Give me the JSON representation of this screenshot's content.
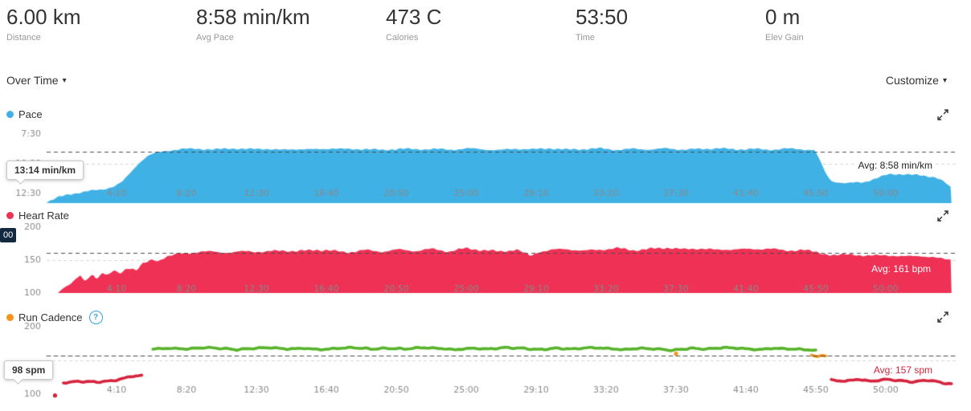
{
  "stats": {
    "items": [
      {
        "value": "6.00 km",
        "label": "Distance"
      },
      {
        "value": "8:58 min/km",
        "label": "Avg Pace"
      },
      {
        "value": "473 C",
        "label": "Calories"
      },
      {
        "value": "53:50",
        "label": "Time"
      },
      {
        "value": "0 m",
        "label": "Elev Gain"
      }
    ]
  },
  "controls": {
    "left_dropdown": "Over Time",
    "right_dropdown": "Customize",
    "caret": "▾"
  },
  "chart_data": [
    {
      "id": "pace",
      "type": "area",
      "title": "Pace",
      "color": "#3fb1e5",
      "legend_color": "#3fb1e5",
      "tooltip": "13:14 min/km",
      "avg_label": "Avg: 8:58 min/km",
      "avg": 538,
      "unit": "min/km (seconds per km)",
      "x_max": 3253,
      "x_ticks": [
        250,
        500,
        750,
        1000,
        1250,
        1500,
        1750,
        2000,
        2250,
        2500,
        2750,
        3000
      ],
      "x_tick_labels": [
        "4:10",
        "8:20",
        "12:30",
        "16:40",
        "20:50",
        "25:00",
        "29:10",
        "33:20",
        "37:30",
        "41:40",
        "45:50",
        "50:00"
      ],
      "y_ticks": [
        450,
        600,
        750
      ],
      "y_tick_labels": [
        "7:30",
        "10:00",
        "12:30"
      ],
      "gridlines": [
        600
      ],
      "noise": 6,
      "points": [
        [
          0,
          795
        ],
        [
          40,
          772
        ],
        [
          80,
          755
        ],
        [
          120,
          746
        ],
        [
          160,
          738
        ],
        [
          200,
          730
        ],
        [
          240,
          716
        ],
        [
          270,
          694
        ],
        [
          300,
          645
        ],
        [
          330,
          596
        ],
        [
          360,
          562
        ],
        [
          390,
          546
        ],
        [
          420,
          536
        ],
        [
          450,
          531
        ],
        [
          480,
          527
        ],
        [
          540,
          524
        ],
        [
          600,
          529
        ],
        [
          660,
          522
        ],
        [
          720,
          527
        ],
        [
          780,
          524
        ],
        [
          840,
          531
        ],
        [
          900,
          525
        ],
        [
          960,
          529
        ],
        [
          1020,
          522
        ],
        [
          1080,
          528
        ],
        [
          1140,
          525
        ],
        [
          1200,
          532
        ],
        [
          1260,
          524
        ],
        [
          1320,
          528
        ],
        [
          1380,
          525
        ],
        [
          1440,
          530
        ],
        [
          1500,
          523
        ],
        [
          1560,
          527
        ],
        [
          1620,
          532
        ],
        [
          1680,
          524
        ],
        [
          1740,
          528
        ],
        [
          1800,
          522
        ],
        [
          1860,
          529
        ],
        [
          1920,
          526
        ],
        [
          1980,
          523
        ],
        [
          2040,
          530
        ],
        [
          2100,
          525
        ],
        [
          2160,
          528
        ],
        [
          2220,
          523
        ],
        [
          2280,
          529
        ],
        [
          2340,
          526
        ],
        [
          2400,
          522
        ],
        [
          2460,
          528
        ],
        [
          2520,
          525
        ],
        [
          2580,
          530
        ],
        [
          2640,
          524
        ],
        [
          2700,
          527
        ],
        [
          2745,
          531
        ],
        [
          2765,
          585
        ],
        [
          2785,
          650
        ],
        [
          2805,
          688
        ],
        [
          2860,
          700
        ],
        [
          2920,
          694
        ],
        [
          2980,
          668
        ],
        [
          3010,
          655
        ],
        [
          3060,
          652
        ],
        [
          3120,
          660
        ],
        [
          3180,
          668
        ],
        [
          3210,
          694
        ],
        [
          3235,
          726
        ]
      ]
    },
    {
      "id": "heart_rate",
      "type": "area",
      "title": "Heart Rate",
      "color": "#ee3154",
      "legend_color": "#ee3154",
      "tooltip": "00",
      "avg_label": "Avg: 161 bpm",
      "avg": 161,
      "unit": "bpm",
      "x_max": 3253,
      "x_ticks": [
        250,
        500,
        750,
        1000,
        1250,
        1500,
        1750,
        2000,
        2250,
        2500,
        2750,
        3000
      ],
      "x_tick_labels": [
        "4:10",
        "8:20",
        "12:30",
        "16:40",
        "20:50",
        "25:00",
        "29:10",
        "33:20",
        "37:30",
        "41:40",
        "45:50",
        "50:00"
      ],
      "y_ticks": [
        200,
        150,
        100
      ],
      "y_tick_labels": [
        "200",
        "150",
        "100"
      ],
      "gridlines": [
        150
      ],
      "noise": 2.2,
      "points": [
        [
          40,
          100
        ],
        [
          60,
          109
        ],
        [
          80,
          113
        ],
        [
          100,
          119
        ],
        [
          120,
          126
        ],
        [
          135,
          117
        ],
        [
          150,
          123
        ],
        [
          165,
          129
        ],
        [
          180,
          122
        ],
        [
          200,
          131
        ],
        [
          220,
          126
        ],
        [
          240,
          134
        ],
        [
          260,
          129
        ],
        [
          280,
          136
        ],
        [
          300,
          139
        ],
        [
          320,
          134
        ],
        [
          340,
          143
        ],
        [
          360,
          147
        ],
        [
          380,
          151
        ],
        [
          400,
          149
        ],
        [
          420,
          154
        ],
        [
          450,
          157
        ],
        [
          480,
          160
        ],
        [
          540,
          162
        ],
        [
          600,
          163
        ],
        [
          660,
          161
        ],
        [
          720,
          164
        ],
        [
          780,
          162
        ],
        [
          840,
          165
        ],
        [
          900,
          163
        ],
        [
          960,
          166
        ],
        [
          1020,
          164
        ],
        [
          1080,
          162
        ],
        [
          1140,
          165
        ],
        [
          1200,
          163
        ],
        [
          1260,
          166
        ],
        [
          1320,
          164
        ],
        [
          1380,
          167
        ],
        [
          1440,
          163
        ],
        [
          1500,
          168
        ],
        [
          1560,
          165
        ],
        [
          1620,
          163
        ],
        [
          1680,
          166
        ],
        [
          1730,
          156
        ],
        [
          1760,
          163
        ],
        [
          1800,
          165
        ],
        [
          1860,
          167
        ],
        [
          1920,
          164
        ],
        [
          1980,
          166
        ],
        [
          2040,
          168
        ],
        [
          2100,
          165
        ],
        [
          2160,
          167
        ],
        [
          2220,
          169
        ],
        [
          2280,
          166
        ],
        [
          2340,
          168
        ],
        [
          2400,
          165
        ],
        [
          2460,
          167
        ],
        [
          2520,
          166
        ],
        [
          2580,
          168
        ],
        [
          2640,
          164
        ],
        [
          2700,
          166
        ],
        [
          2760,
          161
        ],
        [
          2820,
          157
        ],
        [
          2880,
          159
        ],
        [
          2940,
          156
        ],
        [
          3000,
          158
        ],
        [
          3060,
          155
        ],
        [
          3120,
          157
        ],
        [
          3180,
          153
        ],
        [
          3235,
          151
        ]
      ]
    },
    {
      "id": "cadence",
      "type": "multi-line",
      "title": "Run Cadence",
      "help": "?",
      "legend_color": "#f7941d",
      "tooltip": "98 spm",
      "avg_label": "Avg: 157 spm",
      "avg": 157,
      "unit": "spm",
      "x_max": 3253,
      "x_ticks": [
        250,
        500,
        750,
        1000,
        1250,
        1500,
        1750,
        2000,
        2250,
        2500,
        2750,
        3000
      ],
      "x_tick_labels": [
        "4:10",
        "8:20",
        "12:30",
        "16:40",
        "20:50",
        "25:00",
        "29:10",
        "33:20",
        "37:30",
        "41:40",
        "45:50",
        "50:00"
      ],
      "y_ticks": [
        200,
        100
      ],
      "y_tick_labels": [
        "200",
        "100"
      ],
      "gridlines": [
        150
      ],
      "noise": 1.2,
      "series": [
        {
          "name": "cadence-low-start-dot",
          "color": "#d6233e",
          "points": [
            [
              30,
              98
            ]
          ]
        },
        {
          "name": "cadence-low-start",
          "color": "#d6233e",
          "points": [
            [
              60,
              117
            ],
            [
              120,
              119
            ],
            [
              180,
              118
            ],
            [
              240,
              120
            ],
            [
              300,
              126
            ],
            [
              340,
              128
            ]
          ]
        },
        {
          "name": "cadence-run-green",
          "color": "#57b32a",
          "points": [
            [
              380,
              167
            ],
            [
              440,
              168
            ],
            [
              500,
              167
            ],
            [
              560,
              169
            ],
            [
              620,
              168
            ],
            [
              680,
              166
            ],
            [
              740,
              168
            ],
            [
              800,
              169
            ],
            [
              860,
              167
            ],
            [
              920,
              168
            ],
            [
              980,
              166
            ],
            [
              1040,
              168
            ],
            [
              1100,
              169
            ],
            [
              1160,
              167
            ],
            [
              1220,
              168
            ],
            [
              1280,
              167
            ],
            [
              1340,
              169
            ],
            [
              1400,
              168
            ],
            [
              1460,
              166
            ],
            [
              1520,
              168
            ],
            [
              1580,
              167
            ],
            [
              1640,
              169
            ],
            [
              1700,
              168
            ],
            [
              1760,
              166
            ],
            [
              1820,
              168
            ],
            [
              1880,
              167
            ],
            [
              1940,
              169
            ],
            [
              2000,
              168
            ],
            [
              2060,
              166
            ],
            [
              2120,
              168
            ],
            [
              2180,
              167
            ],
            [
              2240,
              165
            ],
            [
              2300,
              168
            ],
            [
              2360,
              167
            ],
            [
              2420,
              169
            ],
            [
              2480,
              168
            ],
            [
              2540,
              166
            ],
            [
              2600,
              168
            ],
            [
              2660,
              167
            ],
            [
              2720,
              166
            ],
            [
              2755,
              164
            ]
          ]
        },
        {
          "name": "cadence-orange-mid",
          "color": "#f7941d",
          "points": [
            [
              2250,
              160
            ]
          ]
        },
        {
          "name": "cadence-orange-end",
          "color": "#f7941d",
          "points": [
            [
              2735,
              158
            ],
            [
              2755,
              155
            ],
            [
              2775,
              158
            ],
            [
              2792,
              156
            ]
          ]
        },
        {
          "name": "cadence-low-end",
          "color": "#d6233e",
          "points": [
            [
              2805,
              121
            ],
            [
              2850,
              119
            ],
            [
              2900,
              122
            ],
            [
              2950,
              119
            ],
            [
              3000,
              122
            ],
            [
              3050,
              120
            ],
            [
              3100,
              118
            ],
            [
              3150,
              121
            ],
            [
              3200,
              117
            ],
            [
              3235,
              115
            ]
          ]
        }
      ]
    }
  ]
}
